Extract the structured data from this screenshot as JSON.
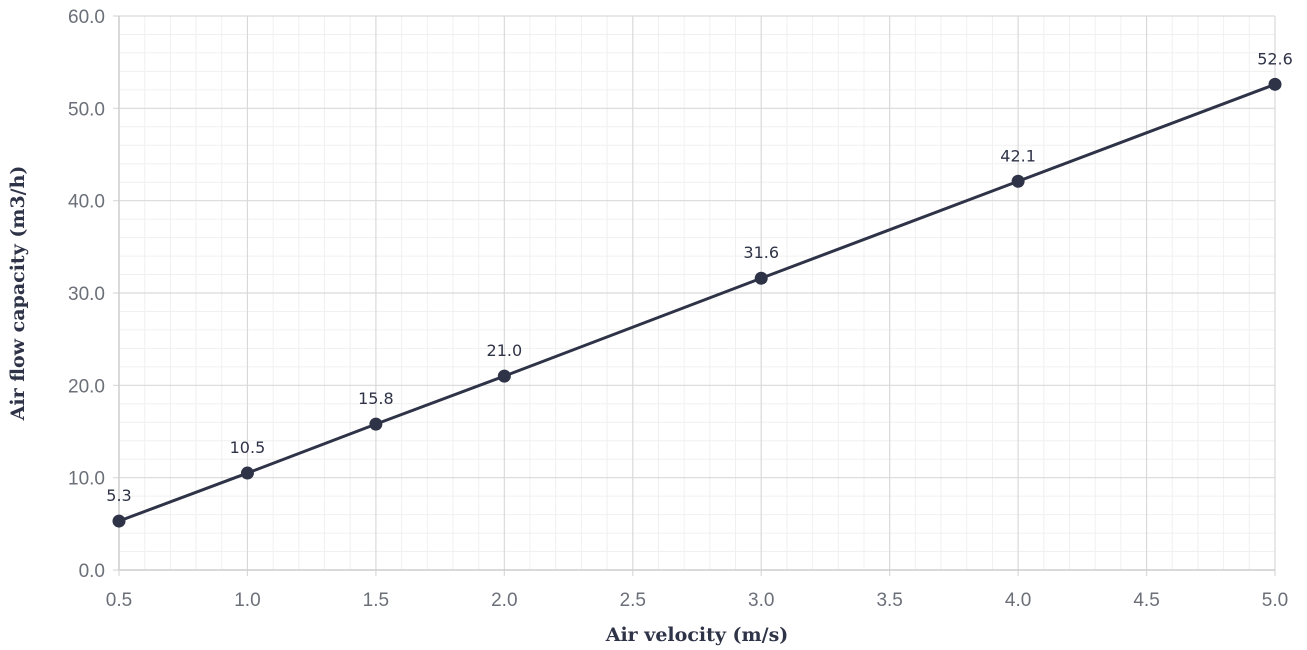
{
  "chart_data": {
    "type": "line",
    "xlabel": "Air velocity (m/s)",
    "ylabel": "Air flow capacity (m3/h)",
    "xlim": [
      0.5,
      5.0
    ],
    "ylim": [
      0.0,
      60.0
    ],
    "x_ticks": [
      "0.5",
      "1.0",
      "1.5",
      "2.0",
      "2.5",
      "3.0",
      "3.5",
      "4.0",
      "4.5",
      "5.0"
    ],
    "y_ticks": [
      "0.0",
      "10.0",
      "20.0",
      "30.0",
      "40.0",
      "50.0",
      "60.0"
    ],
    "grid": true,
    "series": [
      {
        "x": [
          0.5,
          1.0,
          1.5,
          2.0,
          3.0,
          4.0,
          5.0
        ],
        "values": [
          5.3,
          10.5,
          15.8,
          21.0,
          31.6,
          42.1,
          52.6
        ],
        "labels": [
          "5.3",
          "10.5",
          "15.8",
          "21.0",
          "31.6",
          "42.1",
          "52.6"
        ],
        "color": "#2f3347"
      }
    ]
  }
}
